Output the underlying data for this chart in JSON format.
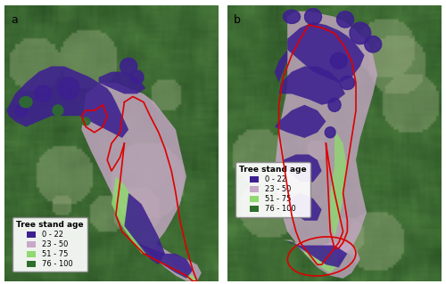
{
  "panel_a_label": "a",
  "panel_b_label": "b",
  "legend_title": "Tree stand age",
  "legend_entries": [
    {
      "label": "0 - 22",
      "color": "#3d2090"
    },
    {
      "label": "23 - 50",
      "color": "#c8a8c8"
    },
    {
      "label": "51 - 75",
      "color": "#90d870"
    },
    {
      "label": "76 - 100",
      "color": "#2d6e2d"
    }
  ],
  "background_color": "#ffffff",
  "label_fontsize": 9,
  "legend_fontsize": 6,
  "red_outline_color": "#dd0000",
  "satellite_base_a": "#4a6e50",
  "satellite_base_b": "#5a7a55"
}
